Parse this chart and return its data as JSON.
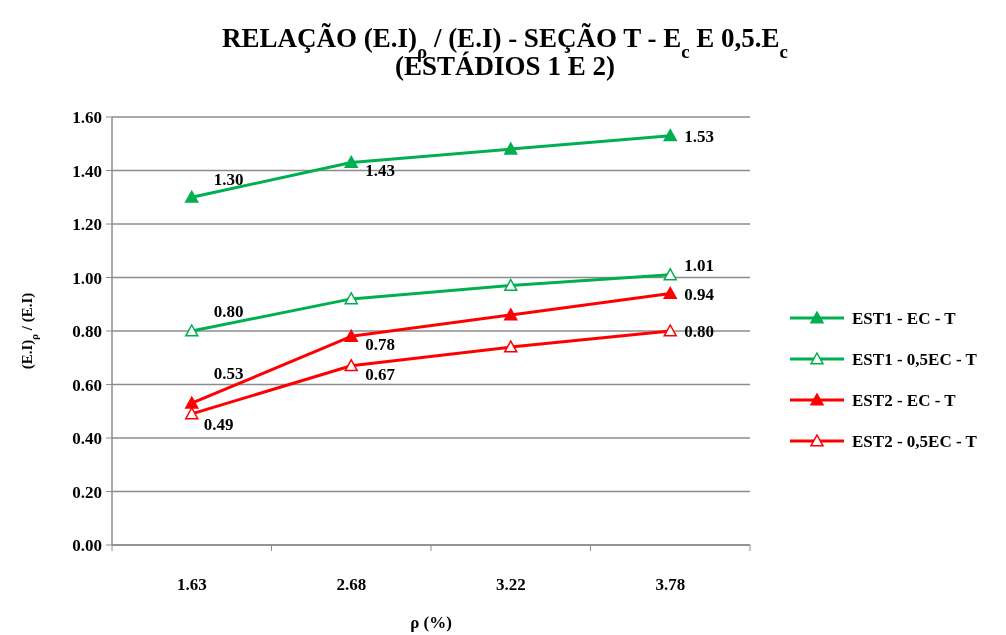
{
  "chart_data": {
    "type": "line",
    "title": "RELAÇÃO (E.I)$_{ρ}$  /  (E.I) - SEÇÃO T - E$_{c}$ E 0,5.E$_{c}$\n(ESTÁDIOS 1 E 2)",
    "xlabel": "ρ (%)",
    "ylabel": "(E.I)$_{ρ}$  / (E.I)",
    "categories": [
      "1.63",
      "2.68",
      "3.22",
      "3.78"
    ],
    "series": [
      {
        "name": "EST1 - EC - T",
        "color": "#00b050",
        "values": [
          1.3,
          1.43,
          1.48,
          1.53
        ],
        "value_labels": [
          "1.30",
          "1.43",
          null,
          "1.53"
        ]
      },
      {
        "name": "EST1 - 0,5EC - T",
        "color": "#00b050",
        "values": [
          0.8,
          0.92,
          0.97,
          1.01
        ],
        "value_labels": [
          "0.80",
          null,
          null,
          "1.01"
        ]
      },
      {
        "name": "EST2 - EC - T",
        "color": "#ff0000",
        "values": [
          0.53,
          0.78,
          0.86,
          0.94
        ],
        "value_labels": [
          "0.53",
          "0.78",
          null,
          "0.94"
        ]
      },
      {
        "name": "EST2 - 0,5EC - T",
        "color": "#ff0000",
        "values": [
          0.49,
          0.67,
          0.74,
          0.8
        ],
        "value_labels": [
          "0.49",
          "0.67",
          null,
          "0.80"
        ]
      }
    ],
    "ylim": [
      0,
      1.6
    ],
    "yticks": [
      {
        "value": 0,
        "label": "0.00"
      },
      {
        "value": 0.2,
        "label": "0.20"
      },
      {
        "value": 0.4,
        "label": "0.40"
      },
      {
        "value": 0.6,
        "label": "0.60"
      },
      {
        "value": 0.8,
        "label": "0.80"
      },
      {
        "value": 1.0,
        "label": "1.00"
      },
      {
        "value": 1.2,
        "label": "1.20"
      },
      {
        "value": 1.4,
        "label": "1.40"
      },
      {
        "value": 1.6,
        "label": "1.60"
      }
    ],
    "grid": "y",
    "legend": "right",
    "marker": "triangle",
    "line_style": "solid"
  }
}
